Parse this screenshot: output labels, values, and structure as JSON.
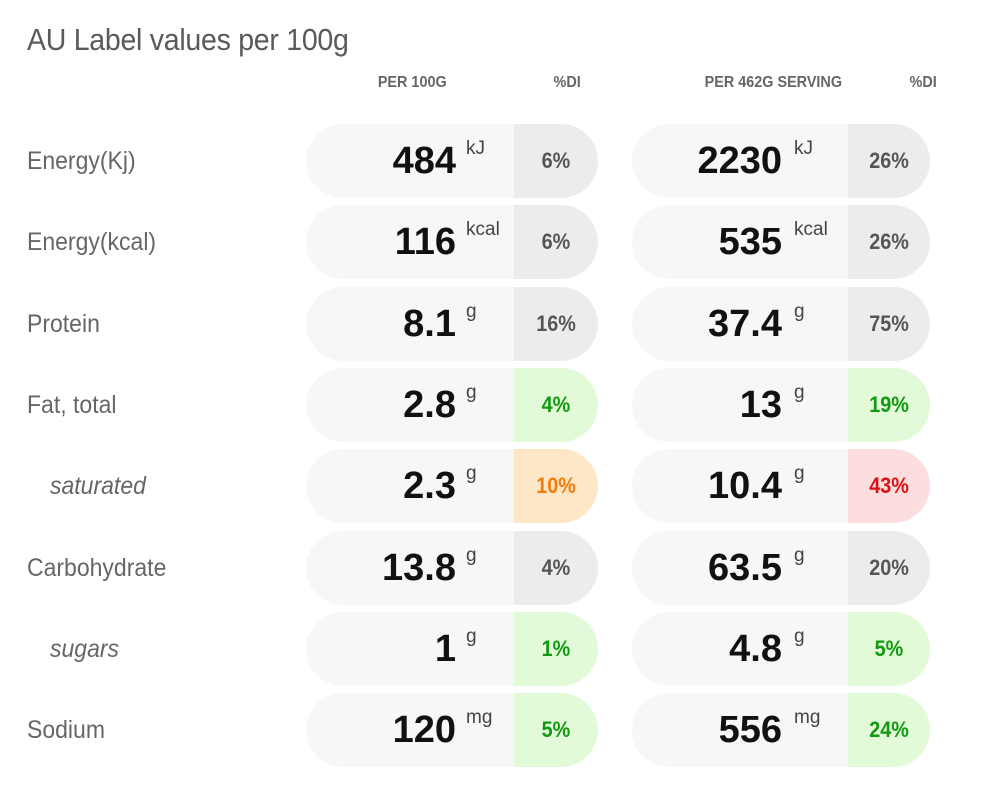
{
  "title": "AU Label values per 100g",
  "headers": {
    "per100": "PER 100G",
    "di1": "%DI",
    "perServing": "PER 462G SERVING",
    "di2": "%DI"
  },
  "rows": [
    {
      "label": "Energy(Kj)",
      "sub": false,
      "v1": "484",
      "u1": "kJ",
      "d1": "6%",
      "c1": "gray",
      "v2": "2230",
      "u2": "kJ",
      "d2": "26%",
      "c2": "gray"
    },
    {
      "label": "Energy(kcal)",
      "sub": false,
      "v1": "116",
      "u1": "kcal",
      "d1": "6%",
      "c1": "gray",
      "v2": "535",
      "u2": "kcal",
      "d2": "26%",
      "c2": "gray"
    },
    {
      "label": "Protein",
      "sub": false,
      "v1": "8.1",
      "u1": "g",
      "d1": "16%",
      "c1": "gray",
      "v2": "37.4",
      "u2": "g",
      "d2": "75%",
      "c2": "gray"
    },
    {
      "label": "Fat, total",
      "sub": false,
      "v1": "2.8",
      "u1": "g",
      "d1": "4%",
      "c1": "green",
      "v2": "13",
      "u2": "g",
      "d2": "19%",
      "c2": "green"
    },
    {
      "label": "saturated",
      "sub": true,
      "v1": "2.3",
      "u1": "g",
      "d1": "10%",
      "c1": "orange",
      "v2": "10.4",
      "u2": "g",
      "d2": "43%",
      "c2": "red"
    },
    {
      "label": "Carbohydrate",
      "sub": false,
      "v1": "13.8",
      "u1": "g",
      "d1": "4%",
      "c1": "gray",
      "v2": "63.5",
      "u2": "g",
      "d2": "20%",
      "c2": "gray"
    },
    {
      "label": "sugars",
      "sub": true,
      "v1": "1",
      "u1": "g",
      "d1": "1%",
      "c1": "green",
      "v2": "4.8",
      "u2": "g",
      "d2": "5%",
      "c2": "green"
    },
    {
      "label": "Sodium",
      "sub": false,
      "v1": "120",
      "u1": "mg",
      "d1": "5%",
      "c1": "green",
      "v2": "556",
      "u2": "mg",
      "d2": "24%",
      "c2": "green"
    }
  ]
}
